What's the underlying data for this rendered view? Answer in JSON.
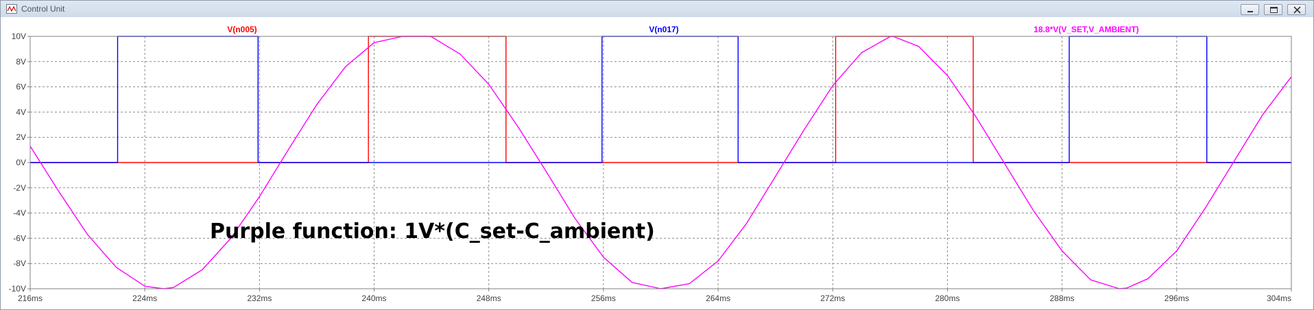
{
  "window": {
    "title": "Control Unit",
    "icons": [
      "waveform-app-icon",
      "minimize-icon",
      "maximize-icon",
      "close-icon"
    ]
  },
  "annotation": "Purple function: 1V*(C_set-C_ambient)",
  "chart_data": {
    "type": "line",
    "title": "",
    "xlabel": "",
    "ylabel": "",
    "xlim": [
      216,
      304
    ],
    "ylim": [
      -10,
      10
    ],
    "grid": true,
    "x_unit": "ms",
    "y_unit": "V",
    "x_ticks": [
      216,
      224,
      232,
      240,
      248,
      256,
      264,
      272,
      280,
      288,
      296,
      304
    ],
    "x_tick_labels": [
      "216ms",
      "224ms",
      "232ms",
      "240ms",
      "248ms",
      "256ms",
      "264ms",
      "272ms",
      "280ms",
      "288ms",
      "296ms",
      "304ms"
    ],
    "y_ticks": [
      10,
      8,
      6,
      4,
      2,
      0,
      -2,
      -4,
      -6,
      -8,
      -10
    ],
    "y_tick_labels": [
      "10V",
      "8V",
      "6V",
      "4V",
      "2V",
      "0V",
      "-2V",
      "-4V",
      "-6V",
      "-8V",
      "-10V"
    ],
    "series": [
      {
        "name": "V(n005)",
        "color": "#ff0000",
        "x": [
          216,
          239.6,
          239.6,
          249.2,
          249.2,
          272.2,
          272.2,
          281.8,
          281.8,
          304
        ],
        "y": [
          0,
          0,
          10,
          10,
          0,
          0,
          10,
          10,
          0,
          0
        ]
      },
      {
        "name": "V(n017)",
        "color": "#0000ff",
        "x": [
          216,
          222.1,
          222.1,
          231.9,
          231.9,
          255.9,
          255.9,
          265.4,
          265.4,
          288.5,
          288.5,
          298.1,
          298.1,
          304
        ],
        "y": [
          0,
          0,
          10,
          10,
          0,
          0,
          10,
          10,
          0,
          0,
          10,
          10,
          0,
          0
        ]
      },
      {
        "name": "18.8*V(V_SET,V_AMBIENT)",
        "color": "#ff00ff",
        "x": [
          216,
          218,
          220,
          222,
          224,
          225.3,
          226,
          228,
          230,
          232,
          234,
          236,
          238,
          240,
          242,
          243.7,
          244,
          246,
          248,
          250,
          252,
          254,
          256,
          258,
          260,
          262,
          264,
          266,
          268,
          270,
          272,
          274,
          276,
          276.2,
          278,
          280,
          282,
          284,
          286,
          288,
          290,
          292,
          292.5,
          294,
          296,
          298,
          300,
          302,
          304
        ],
        "y": [
          1.3,
          -2.3,
          -5.7,
          -8.3,
          -9.8,
          -10,
          -9.9,
          -8.5,
          -6.0,
          -2.7,
          1.0,
          4.6,
          7.6,
          9.5,
          10,
          10,
          9.97,
          8.6,
          6.2,
          2.9,
          -0.7,
          -4.4,
          -7.5,
          -9.5,
          -10,
          -9.6,
          -7.8,
          -4.8,
          -1.1,
          2.6,
          6.1,
          8.7,
          9.98,
          10,
          9.2,
          6.9,
          3.6,
          -0.1,
          -3.8,
          -7.0,
          -9.3,
          -10,
          -9.95,
          -9.2,
          -7.0,
          -3.6,
          0.1,
          3.8,
          6.8
        ]
      }
    ]
  }
}
